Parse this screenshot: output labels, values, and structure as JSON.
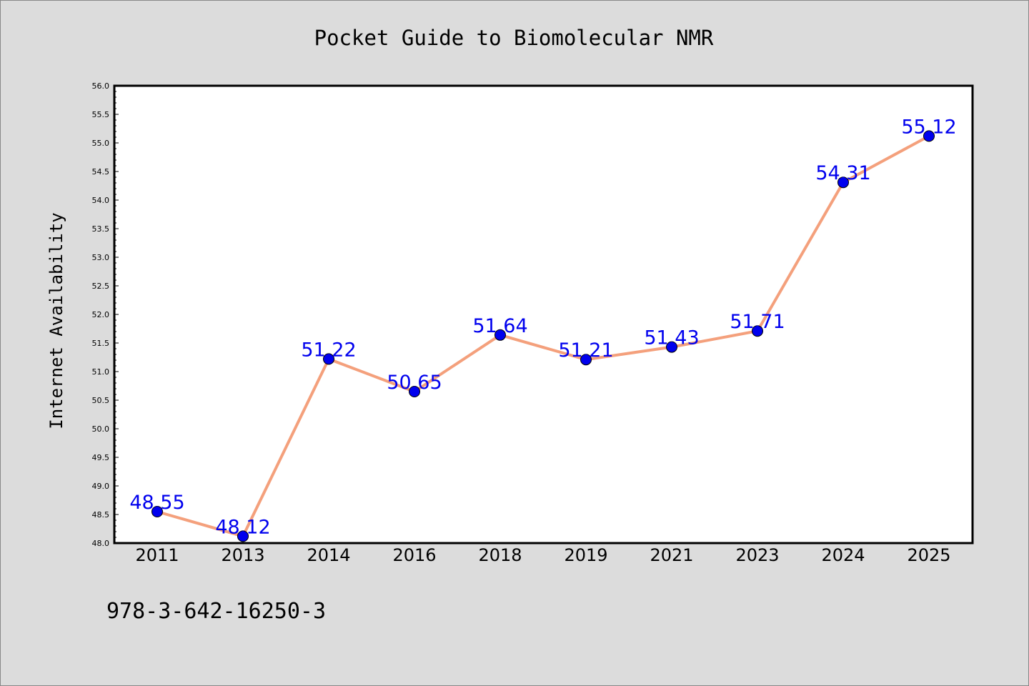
{
  "figure": {
    "background_color": "#dcdcdc",
    "plot_background_color": "#ffffff",
    "footer_text": "978-3-642-16250-3"
  },
  "chart_data": {
    "type": "line",
    "title": "Pocket Guide to Biomolecular NMR",
    "xlabel": "",
    "ylabel": "Internet Availability",
    "categories": [
      "2011",
      "2013",
      "2014",
      "2016",
      "2018",
      "2019",
      "2021",
      "2023",
      "2024",
      "2025"
    ],
    "series": [
      {
        "values": [
          48.55,
          48.12,
          51.22,
          50.65,
          51.64,
          51.21,
          51.43,
          51.71,
          54.31,
          55.12
        ],
        "data_labels": [
          "48.55",
          "48.12",
          "51.22",
          "50.65",
          "51.64",
          "51.21",
          "51.43",
          "51.71",
          "54.31",
          "55.12"
        ],
        "line_color": "#f4a07c",
        "marker_color": "#0000ee",
        "label_color": "#0000ee"
      }
    ],
    "ylim": [
      48.0,
      56.0
    ],
    "yticks": [
      48.0,
      48.5,
      49.0,
      49.5,
      50.0,
      50.5,
      51.0,
      51.5,
      52.0,
      52.5,
      53.0,
      53.5,
      54.0,
      54.5,
      55.0,
      55.5,
      56.0
    ],
    "ytick_labels": [
      "48.0",
      "48.5",
      "49.0",
      "49.5",
      "50.0",
      "50.5",
      "51.0",
      "51.5",
      "52.0",
      "52.5",
      "53.0",
      "53.5",
      "54.0",
      "54.5",
      "55.0",
      "55.5",
      "56.0"
    ],
    "grid": false,
    "legend": "none"
  }
}
